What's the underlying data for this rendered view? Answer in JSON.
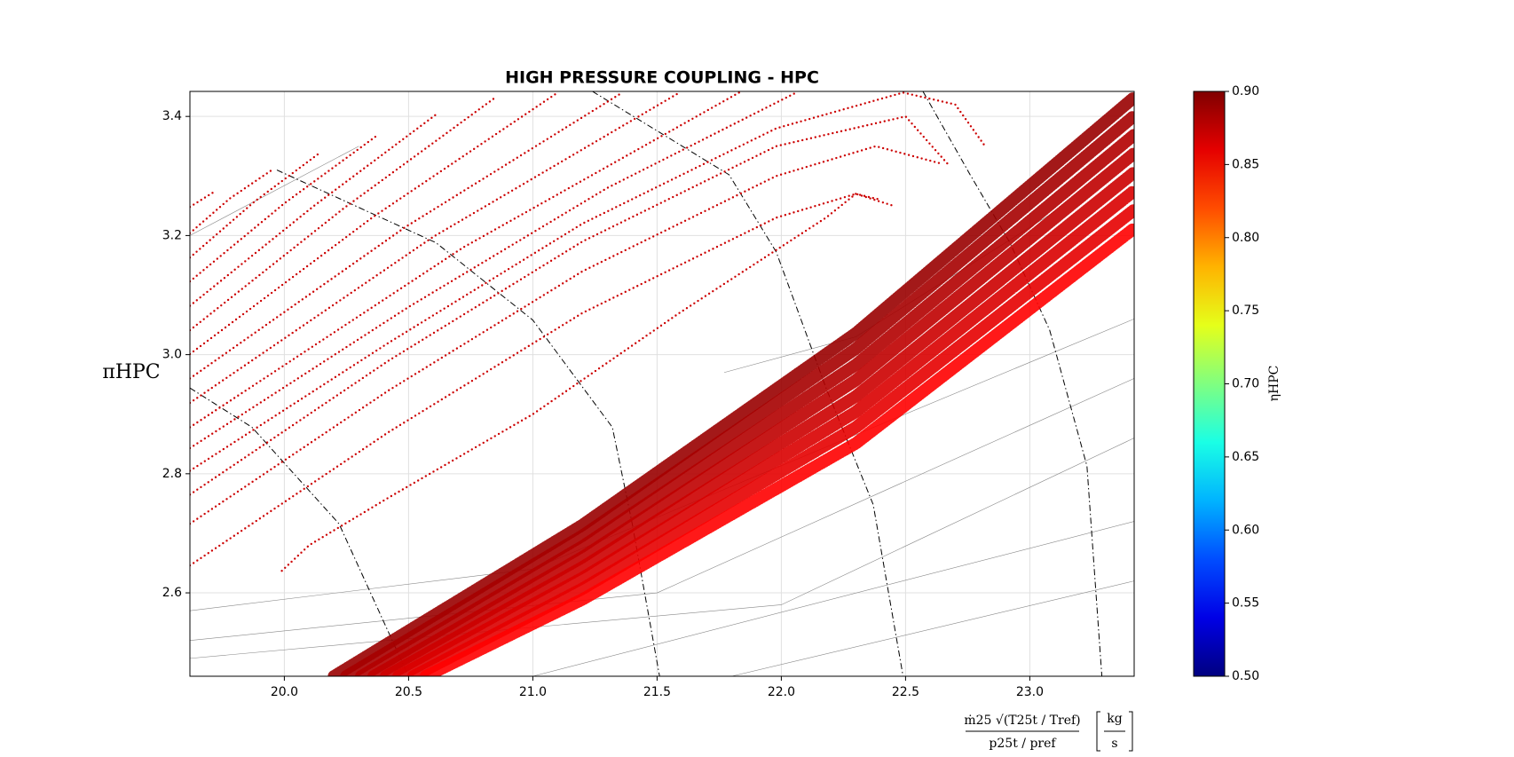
{
  "chart_data": {
    "type": "scatter",
    "title": "HIGH PRESSURE COUPLING - HPC",
    "ylabel": "πHPC",
    "xlabel_numerator": "ṁ25 √(T25t / Tref)",
    "xlabel_denominator": "p25t / pref",
    "xlabel_unit_numerator": "kg",
    "xlabel_unit_denominator": "s",
    "colorbar_label": "ηHPC",
    "grid": true,
    "xlim": [
      19.62,
      23.42
    ],
    "ylim": [
      2.46,
      3.442
    ],
    "xticks": [
      {
        "value": 20,
        "label": "20.0"
      },
      20.5,
      {
        "value": 21,
        "label": "21.0"
      },
      21.5,
      {
        "value": 22,
        "label": "22.0"
      },
      22.5,
      {
        "value": 23,
        "label": "23.0"
      }
    ],
    "yticks": [
      2.6,
      2.8,
      {
        "value": 3,
        "label": "3.0"
      },
      3.2,
      3.4
    ],
    "clim": [
      0.5,
      0.9
    ],
    "cticks": [
      {
        "value": 0.5,
        "label": "0.50"
      },
      0.55,
      {
        "value": 0.6,
        "label": "0.60"
      },
      0.65,
      {
        "value": 0.7,
        "label": "0.70"
      },
      0.75,
      {
        "value": 0.8,
        "label": "0.80"
      },
      0.85,
      {
        "value": 0.9,
        "label": "0.90"
      }
    ],
    "thin_lines": [
      {
        "x": [
          19.62,
          21.0,
          23.42
        ],
        "y": [
          2.57,
          2.64,
          3.06
        ]
      },
      {
        "x": [
          19.62,
          21.5,
          23.42
        ],
        "y": [
          2.52,
          2.6,
          2.96
        ]
      },
      {
        "x": [
          19.62,
          22.0,
          23.42
        ],
        "y": [
          2.49,
          2.58,
          2.86
        ]
      },
      {
        "x": [
          21.0,
          23.42
        ],
        "y": [
          2.46,
          2.72
        ]
      },
      {
        "x": [
          21.8,
          23.42
        ],
        "y": [
          2.46,
          2.62
        ]
      },
      {
        "x": [
          19.62,
          20.3
        ],
        "y": [
          3.2,
          3.35
        ]
      },
      {
        "x": [
          21.77,
          22.3,
          23.1
        ],
        "y": [
          2.97,
          3.03,
          3.24
        ]
      }
    ],
    "dashdot_lines": [
      {
        "x": [
          19.62,
          19.87,
          20.22,
          20.5
        ],
        "y": [
          2.944,
          2.878,
          2.716,
          2.46
        ]
      },
      {
        "x": [
          19.97,
          20.61,
          21.0,
          21.32,
          21.4,
          21.51
        ],
        "y": [
          3.31,
          3.188,
          3.058,
          2.878,
          2.716,
          2.46
        ]
      },
      {
        "x": [
          21.24,
          21.79,
          21.98,
          22.18,
          22.37,
          22.49
        ],
        "y": [
          3.442,
          3.302,
          3.172,
          2.944,
          2.748,
          2.46
        ]
      },
      {
        "x": [
          22.57,
          22.76,
          22.92,
          23.08,
          23.23,
          23.29
        ],
        "y": [
          3.442,
          3.302,
          3.188,
          3.041,
          2.813,
          2.46
        ]
      }
    ],
    "series": [
      {
        "eta": 0.87,
        "x": [
          19.62,
          19.72
        ],
        "y": [
          3.248,
          3.274
        ]
      },
      {
        "eta": 0.87,
        "x": [
          19.62,
          19.78,
          19.95
        ],
        "y": [
          3.204,
          3.262,
          3.31
        ]
      },
      {
        "eta": 0.87,
        "x": [
          19.62,
          19.88,
          20.14
        ],
        "y": [
          3.163,
          3.257,
          3.338
        ]
      },
      {
        "eta": 0.87,
        "x": [
          19.62,
          20.0,
          20.38
        ],
        "y": [
          3.123,
          3.254,
          3.37
        ]
      },
      {
        "eta": 0.87,
        "x": [
          19.62,
          20.12,
          20.61
        ],
        "y": [
          3.082,
          3.25,
          3.403
        ]
      },
      {
        "eta": 0.87,
        "x": [
          19.62,
          20.24,
          20.85
        ],
        "y": [
          3.041,
          3.246,
          3.432
        ]
      },
      {
        "eta": 0.87,
        "x": [
          19.62,
          20.36,
          21.1
        ],
        "y": [
          3.001,
          3.232,
          3.44
        ]
      },
      {
        "eta": 0.87,
        "x": [
          19.62,
          20.49,
          21.36
        ],
        "y": [
          2.96,
          3.215,
          3.44
        ]
      },
      {
        "eta": 0.87,
        "x": [
          19.62,
          20.6,
          21.59
        ],
        "y": [
          2.919,
          3.198,
          3.44
        ]
      },
      {
        "eta": 0.87,
        "x": [
          19.62,
          20.72,
          21.83
        ],
        "y": [
          2.878,
          3.18,
          3.44
        ]
      },
      {
        "eta": 0.87,
        "x": [
          19.62,
          20.5,
          21.3,
          22.06
        ],
        "y": [
          2.843,
          3.08,
          3.28,
          3.44
        ]
      },
      {
        "eta": 0.87,
        "x": [
          19.62,
          20.42,
          21.2,
          21.98,
          22.49,
          22.7,
          22.82
        ],
        "y": [
          2.805,
          3.02,
          3.22,
          3.38,
          3.44,
          3.42,
          3.35
        ]
      },
      {
        "eta": 0.87,
        "x": [
          19.62,
          20.42,
          21.2,
          21.98,
          22.5,
          22.67
        ],
        "y": [
          2.765,
          2.99,
          3.19,
          3.35,
          3.4,
          3.32
        ]
      },
      {
        "eta": 0.87,
        "x": [
          19.62,
          20.42,
          21.2,
          21.98,
          22.38,
          22.65
        ],
        "y": [
          2.716,
          2.94,
          3.14,
          3.3,
          3.35,
          3.32
        ]
      },
      {
        "eta": 0.87,
        "x": [
          19.62,
          20.42,
          21.2,
          21.98,
          22.3,
          22.45
        ],
        "y": [
          2.646,
          2.87,
          3.07,
          3.23,
          3.27,
          3.25
        ]
      },
      {
        "eta": 0.87,
        "x": [
          19.99,
          20.1,
          20.42,
          21.0,
          21.59,
          22.18,
          22.3,
          22.39
        ],
        "y": [
          2.637,
          2.68,
          2.76,
          2.9,
          3.07,
          3.23,
          3.27,
          3.261
        ]
      },
      {
        "eta": 0.89,
        "x": [
          20.2,
          21.2,
          22.3,
          23.42
        ],
        "y": [
          2.46,
          2.714,
          3.036,
          3.432
        ]
      },
      {
        "eta": 0.885,
        "x": [
          20.25,
          21.2,
          22.3,
          23.42
        ],
        "y": [
          2.46,
          2.696,
          3.01,
          3.401
        ]
      },
      {
        "eta": 0.88,
        "x": [
          20.31,
          21.2,
          22.3,
          23.42
        ],
        "y": [
          2.46,
          2.678,
          2.983,
          3.369
        ]
      },
      {
        "eta": 0.875,
        "x": [
          20.36,
          21.2,
          22.3,
          23.42
        ],
        "y": [
          2.46,
          2.66,
          2.957,
          3.338
        ]
      },
      {
        "eta": 0.87,
        "x": [
          20.41,
          21.2,
          22.3,
          23.42
        ],
        "y": [
          2.46,
          2.643,
          2.93,
          3.306
        ]
      },
      {
        "eta": 0.865,
        "x": [
          20.46,
          21.2,
          22.3,
          23.42
        ],
        "y": [
          2.46,
          2.625,
          2.904,
          3.275
        ]
      },
      {
        "eta": 0.86,
        "x": [
          20.52,
          21.2,
          22.3,
          23.42
        ],
        "y": [
          2.46,
          2.607,
          2.878,
          3.243
        ]
      },
      {
        "eta": 0.85,
        "x": [
          20.57,
          21.2,
          22.3,
          23.42
        ],
        "y": [
          2.46,
          2.589,
          2.851,
          3.212
        ]
      }
    ]
  }
}
